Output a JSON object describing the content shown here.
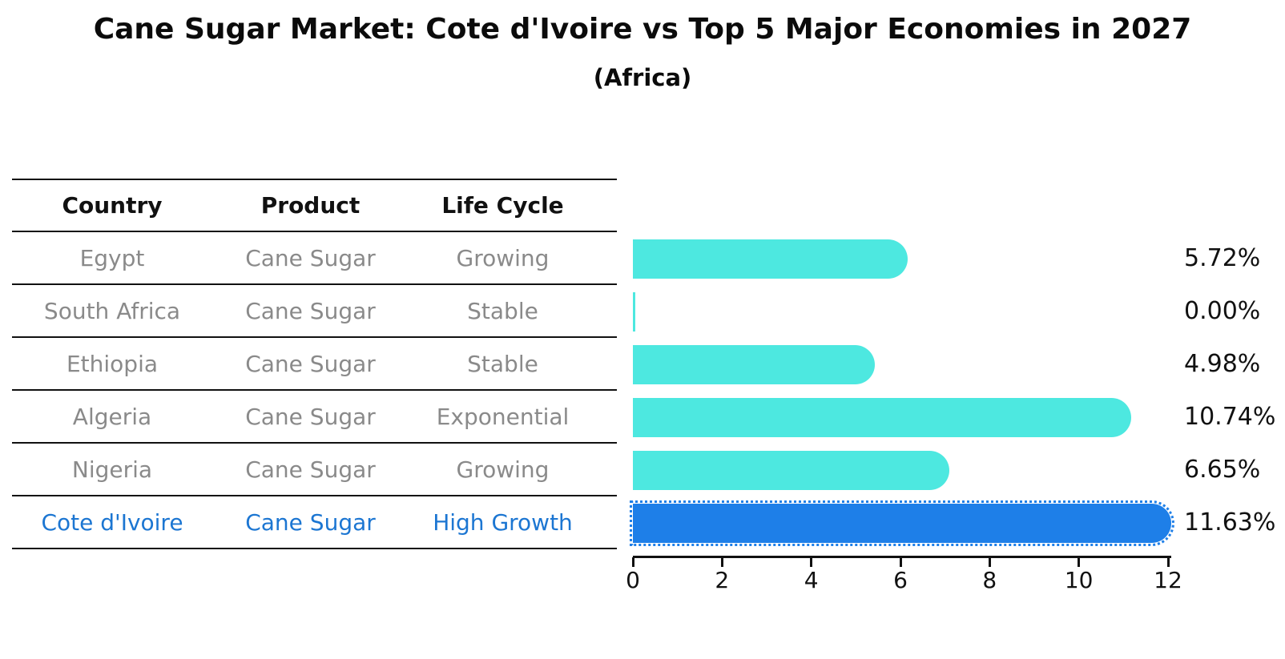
{
  "title": "Cane Sugar Market: Cote d'Ivoire vs Top 5 Major Economies in 2027",
  "subtitle": "(Africa)",
  "table": {
    "headers": [
      "Country",
      "Product",
      "Life Cycle"
    ],
    "rows": [
      {
        "country": "Egypt",
        "product": "Cane Sugar",
        "life_cycle": "Growing",
        "highlight": false
      },
      {
        "country": "South Africa",
        "product": "Cane Sugar",
        "life_cycle": "Stable",
        "highlight": false
      },
      {
        "country": "Ethiopia",
        "product": "Cane Sugar",
        "life_cycle": "Stable",
        "highlight": false
      },
      {
        "country": "Algeria",
        "product": "Cane Sugar",
        "life_cycle": "Exponential",
        "highlight": false
      },
      {
        "country": "Nigeria",
        "product": "Cane Sugar",
        "life_cycle": "Growing",
        "highlight": false
      },
      {
        "country": "Cote d'Ivoire",
        "product": "Cane Sugar",
        "life_cycle": "High Growth",
        "highlight": true
      }
    ]
  },
  "chart_data": {
    "type": "bar",
    "orientation": "horizontal",
    "title": "Cane Sugar Market: Cote d'Ivoire vs Top 5 Major Economies in 2027",
    "subtitle": "(Africa)",
    "categories": [
      "Egypt",
      "South Africa",
      "Ethiopia",
      "Algeria",
      "Nigeria",
      "Cote d'Ivoire"
    ],
    "values": [
      5.72,
      0.0,
      4.98,
      10.74,
      6.65,
      11.63
    ],
    "value_labels": [
      "5.72%",
      "0.00%",
      "4.98%",
      "10.74%",
      "6.65%",
      "11.63%"
    ],
    "highlight_index": 5,
    "xlim": [
      0,
      12
    ],
    "x_ticks": [
      0,
      2,
      4,
      6,
      8,
      10,
      12
    ],
    "grid": false,
    "legend": "none",
    "colors": {
      "bar_default": "#4DE8E0",
      "bar_highlight": "#1E7FE8",
      "highlight_text": "#1C76D2",
      "row_text": "#8A8A8A",
      "axis_text": "#111111"
    }
  }
}
